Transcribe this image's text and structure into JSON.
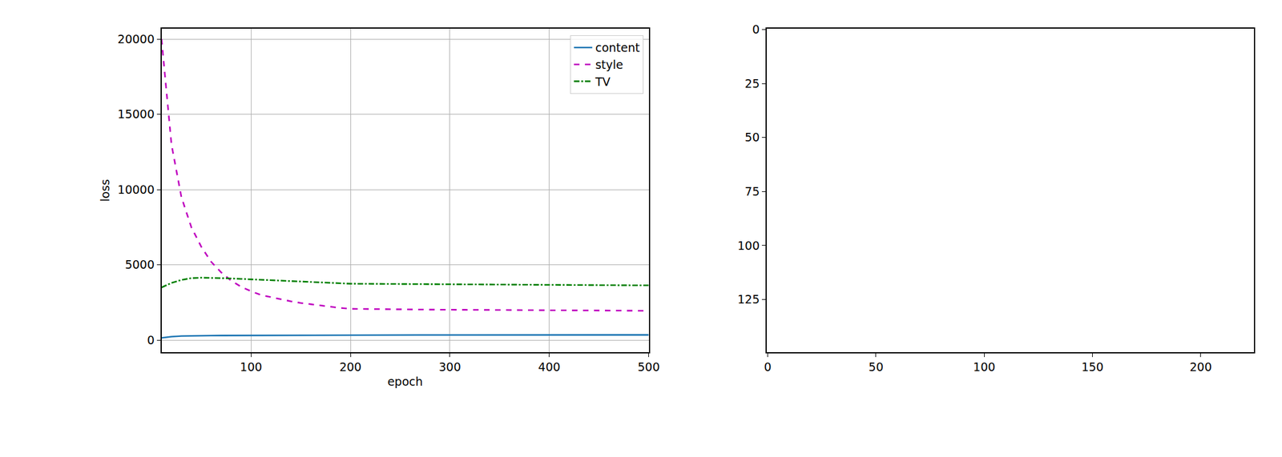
{
  "chart_data": [
    {
      "type": "line",
      "x_label": "epoch",
      "y_label": "loss",
      "x": [
        10,
        20,
        30,
        40,
        50,
        60,
        70,
        80,
        90,
        100,
        110,
        120,
        130,
        140,
        150,
        160,
        170,
        180,
        190,
        200,
        210,
        220,
        230,
        240,
        250,
        260,
        270,
        280,
        290,
        300,
        310,
        320,
        330,
        340,
        350,
        360,
        370,
        380,
        390,
        400,
        410,
        420,
        430,
        440,
        450,
        460,
        470,
        480,
        490,
        500
      ],
      "series": [
        {
          "name": "content",
          "color": "#1f77b4",
          "line_style": "solid",
          "values": [
            150,
            230,
            270,
            290,
            300,
            305,
            310,
            313,
            316,
            320,
            322,
            324,
            326,
            328,
            330,
            332,
            334,
            336,
            338,
            340,
            341,
            342,
            343,
            343,
            344,
            344,
            345,
            345,
            345,
            346,
            346,
            346,
            347,
            347,
            347,
            347,
            348,
            348,
            348,
            348,
            348,
            349,
            349,
            349,
            349,
            349,
            350,
            350,
            350,
            350
          ]
        },
        {
          "name": "style",
          "color": "#bf00bf",
          "line_style": "dashed",
          "values": [
            20000,
            13000,
            9500,
            7500,
            6200,
            5200,
            4500,
            3950,
            3550,
            3250,
            3000,
            2850,
            2700,
            2580,
            2470,
            2380,
            2290,
            2210,
            2140,
            2080,
            2070,
            2060,
            2055,
            2050,
            2045,
            2040,
            2035,
            2030,
            2025,
            2020,
            2015,
            2010,
            2005,
            2000,
            1995,
            1992,
            1990,
            1987,
            1985,
            1982,
            1980,
            1977,
            1975,
            1972,
            1970,
            1967,
            1965,
            1960,
            1955,
            1950
          ]
        },
        {
          "name": "TV",
          "color": "#008000",
          "line_style": "dashdot",
          "values": [
            3500,
            3800,
            4000,
            4120,
            4150,
            4140,
            4120,
            4100,
            4070,
            4040,
            4010,
            3980,
            3950,
            3920,
            3900,
            3870,
            3840,
            3810,
            3780,
            3750,
            3745,
            3740,
            3735,
            3730,
            3725,
            3720,
            3715,
            3710,
            3705,
            3700,
            3697,
            3694,
            3691,
            3688,
            3685,
            3682,
            3679,
            3676,
            3673,
            3670,
            3667,
            3664,
            3661,
            3658,
            3655,
            3652,
            3649,
            3646,
            3643,
            3640
          ]
        }
      ],
      "xlim": [
        10,
        500
      ],
      "xticks": [
        100,
        200,
        300,
        400,
        500
      ],
      "ylim": [
        -810,
        20700
      ],
      "yticks": [
        0,
        5000,
        10000,
        15000,
        20000
      ],
      "grid": true,
      "legend": "upper right"
    },
    {
      "type": "image",
      "xlim": [
        -0.5,
        224.5
      ],
      "xticks": [
        0,
        50,
        100,
        150,
        200
      ],
      "ylim": [
        149.5,
        -0.5
      ],
      "yticks": [
        0,
        25,
        50,
        75,
        100,
        125
      ],
      "grid": false
    }
  ]
}
